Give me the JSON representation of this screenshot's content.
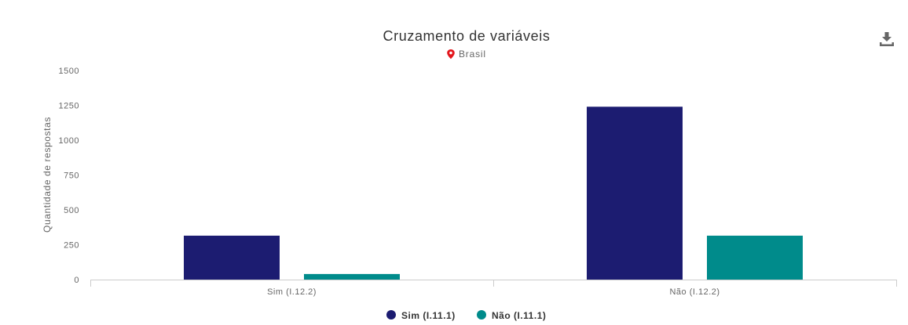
{
  "chart_data": {
    "type": "bar",
    "title": "Cruzamento de variáveis",
    "subtitle": "Brasil",
    "xlabel": "",
    "ylabel": "Quantidade de respostas",
    "categories": [
      "Sim (I.12.2)",
      "Não (I.12.2)"
    ],
    "ylim": [
      0,
      1500
    ],
    "yticks": [
      "0",
      "250",
      "500",
      "750",
      "1000",
      "1250",
      "1500"
    ],
    "series": [
      {
        "name": "Sim (I.11.1)",
        "values": [
          315,
          1240
        ],
        "color": "#1c1c71"
      },
      {
        "name": "Não (I.11.1)",
        "values": [
          40,
          315
        ],
        "color": "#008b8b"
      }
    ],
    "grid": false,
    "legend_position": "bottom-center"
  },
  "icons": {
    "location": "location-pin-icon",
    "location_color": "#e3161c",
    "download": "download-icon"
  }
}
